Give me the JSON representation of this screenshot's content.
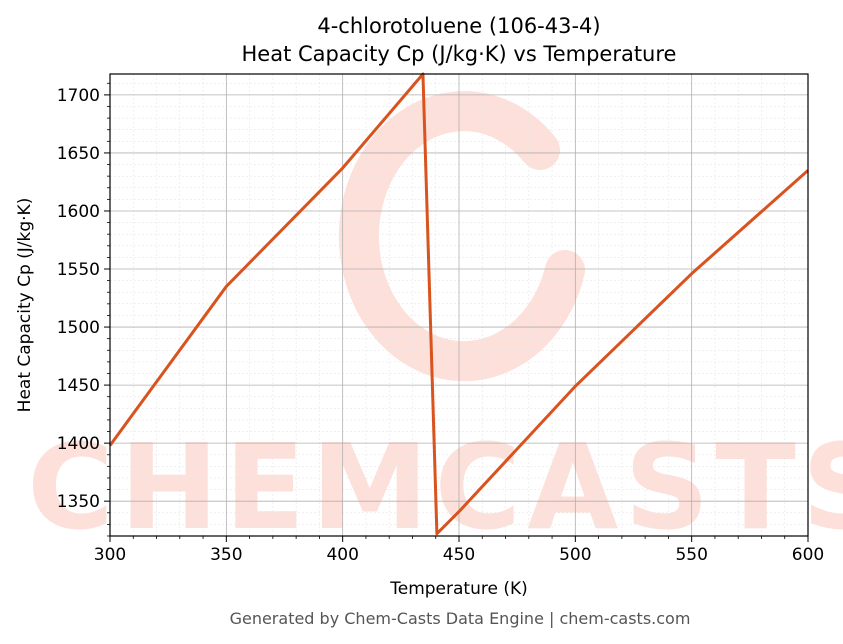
{
  "chart_data": {
    "type": "line",
    "title": "4-chlorotoluene (106-43-4)",
    "subtitle": "Heat Capacity Cp (J/kg·K) vs Temperature",
    "xlabel": "Temperature (K)",
    "ylabel": "Heat Capacity Cp (J/kg·K)",
    "xlim": [
      300,
      600
    ],
    "ylim": [
      1320,
      1718
    ],
    "xticks": [
      300,
      350,
      400,
      450,
      500,
      550,
      600
    ],
    "yticks": [
      1350,
      1400,
      1450,
      1500,
      1550,
      1600,
      1650,
      1700
    ],
    "grid": true,
    "series": [
      {
        "color": "#d9531e",
        "x": [
          300,
          350,
          400,
          434.5,
          440.5,
          450,
          500,
          550,
          600
        ],
        "y": [
          1398,
          1535,
          1637,
          1718,
          1322,
          1341,
          1449,
          1546,
          1635
        ]
      }
    ]
  },
  "watermark": {
    "text": "CHEMCASTS",
    "color": "#fde0da"
  },
  "footer": "Generated by Chem-Casts Data Engine | chem-casts.com"
}
